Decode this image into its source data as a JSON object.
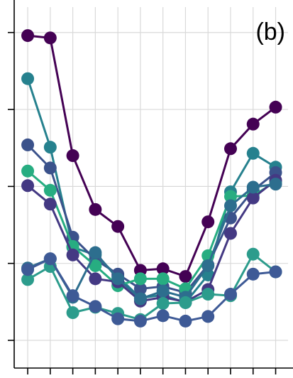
{
  "chart_data": {
    "type": "line",
    "panel_label": "(b)",
    "title": "",
    "xlabel": "",
    "ylabel": "",
    "grid": true,
    "x": [
      0,
      1,
      2,
      3,
      4,
      5,
      6,
      7,
      8,
      9,
      10,
      11
    ],
    "xlim": [
      -0.6,
      11.55
    ],
    "ylim": [
      0.64,
      5.33
    ],
    "yticks": [
      1,
      2,
      3,
      4,
      5
    ],
    "series": [
      {
        "color": "#440154",
        "values": [
          4.96,
          4.93,
          3.4,
          2.7,
          2.48,
          1.91,
          1.93,
          1.83,
          2.54,
          3.49,
          3.81,
          4.03
        ]
      },
      {
        "color": "#26818e",
        "values": [
          4.4,
          3.51,
          2.21,
          2.11,
          1.83,
          1.55,
          1.59,
          1.49,
          1.85,
          2.93,
          3.43,
          3.25
        ]
      },
      {
        "color": "#3b528b",
        "values": [
          3.54,
          3.24,
          2.34,
          2.05,
          1.86,
          1.67,
          1.7,
          1.62,
          1.98,
          2.59,
          2.95,
          3.18
        ]
      },
      {
        "color": "#27ad81",
        "values": [
          3.2,
          2.95,
          2.22,
          1.97,
          1.71,
          1.8,
          1.8,
          1.67,
          2.1,
          2.87,
          2.88,
          3.06
        ]
      },
      {
        "color": "#443983",
        "values": [
          3.01,
          2.77,
          2.11,
          1.8,
          1.76,
          1.51,
          1.56,
          1.5,
          1.66,
          2.39,
          2.85,
          3.08
        ]
      },
      {
        "color": "#2d6e8e",
        "values": [
          1.94,
          2.06,
          1.56,
          2.14,
          1.8,
          1.54,
          1.64,
          1.56,
          1.97,
          2.75,
          2.99,
          3.03
        ]
      },
      {
        "color": "#2c9c8c",
        "values": [
          1.79,
          1.96,
          1.36,
          1.43,
          1.35,
          1.27,
          1.48,
          1.49,
          1.6,
          1.58,
          2.12,
          1.89
        ]
      },
      {
        "color": "#3e5a96",
        "values": [
          1.92,
          2.06,
          1.58,
          1.44,
          1.28,
          1.25,
          1.32,
          1.25,
          1.31,
          1.6,
          1.86,
          1.89
        ]
      }
    ]
  }
}
